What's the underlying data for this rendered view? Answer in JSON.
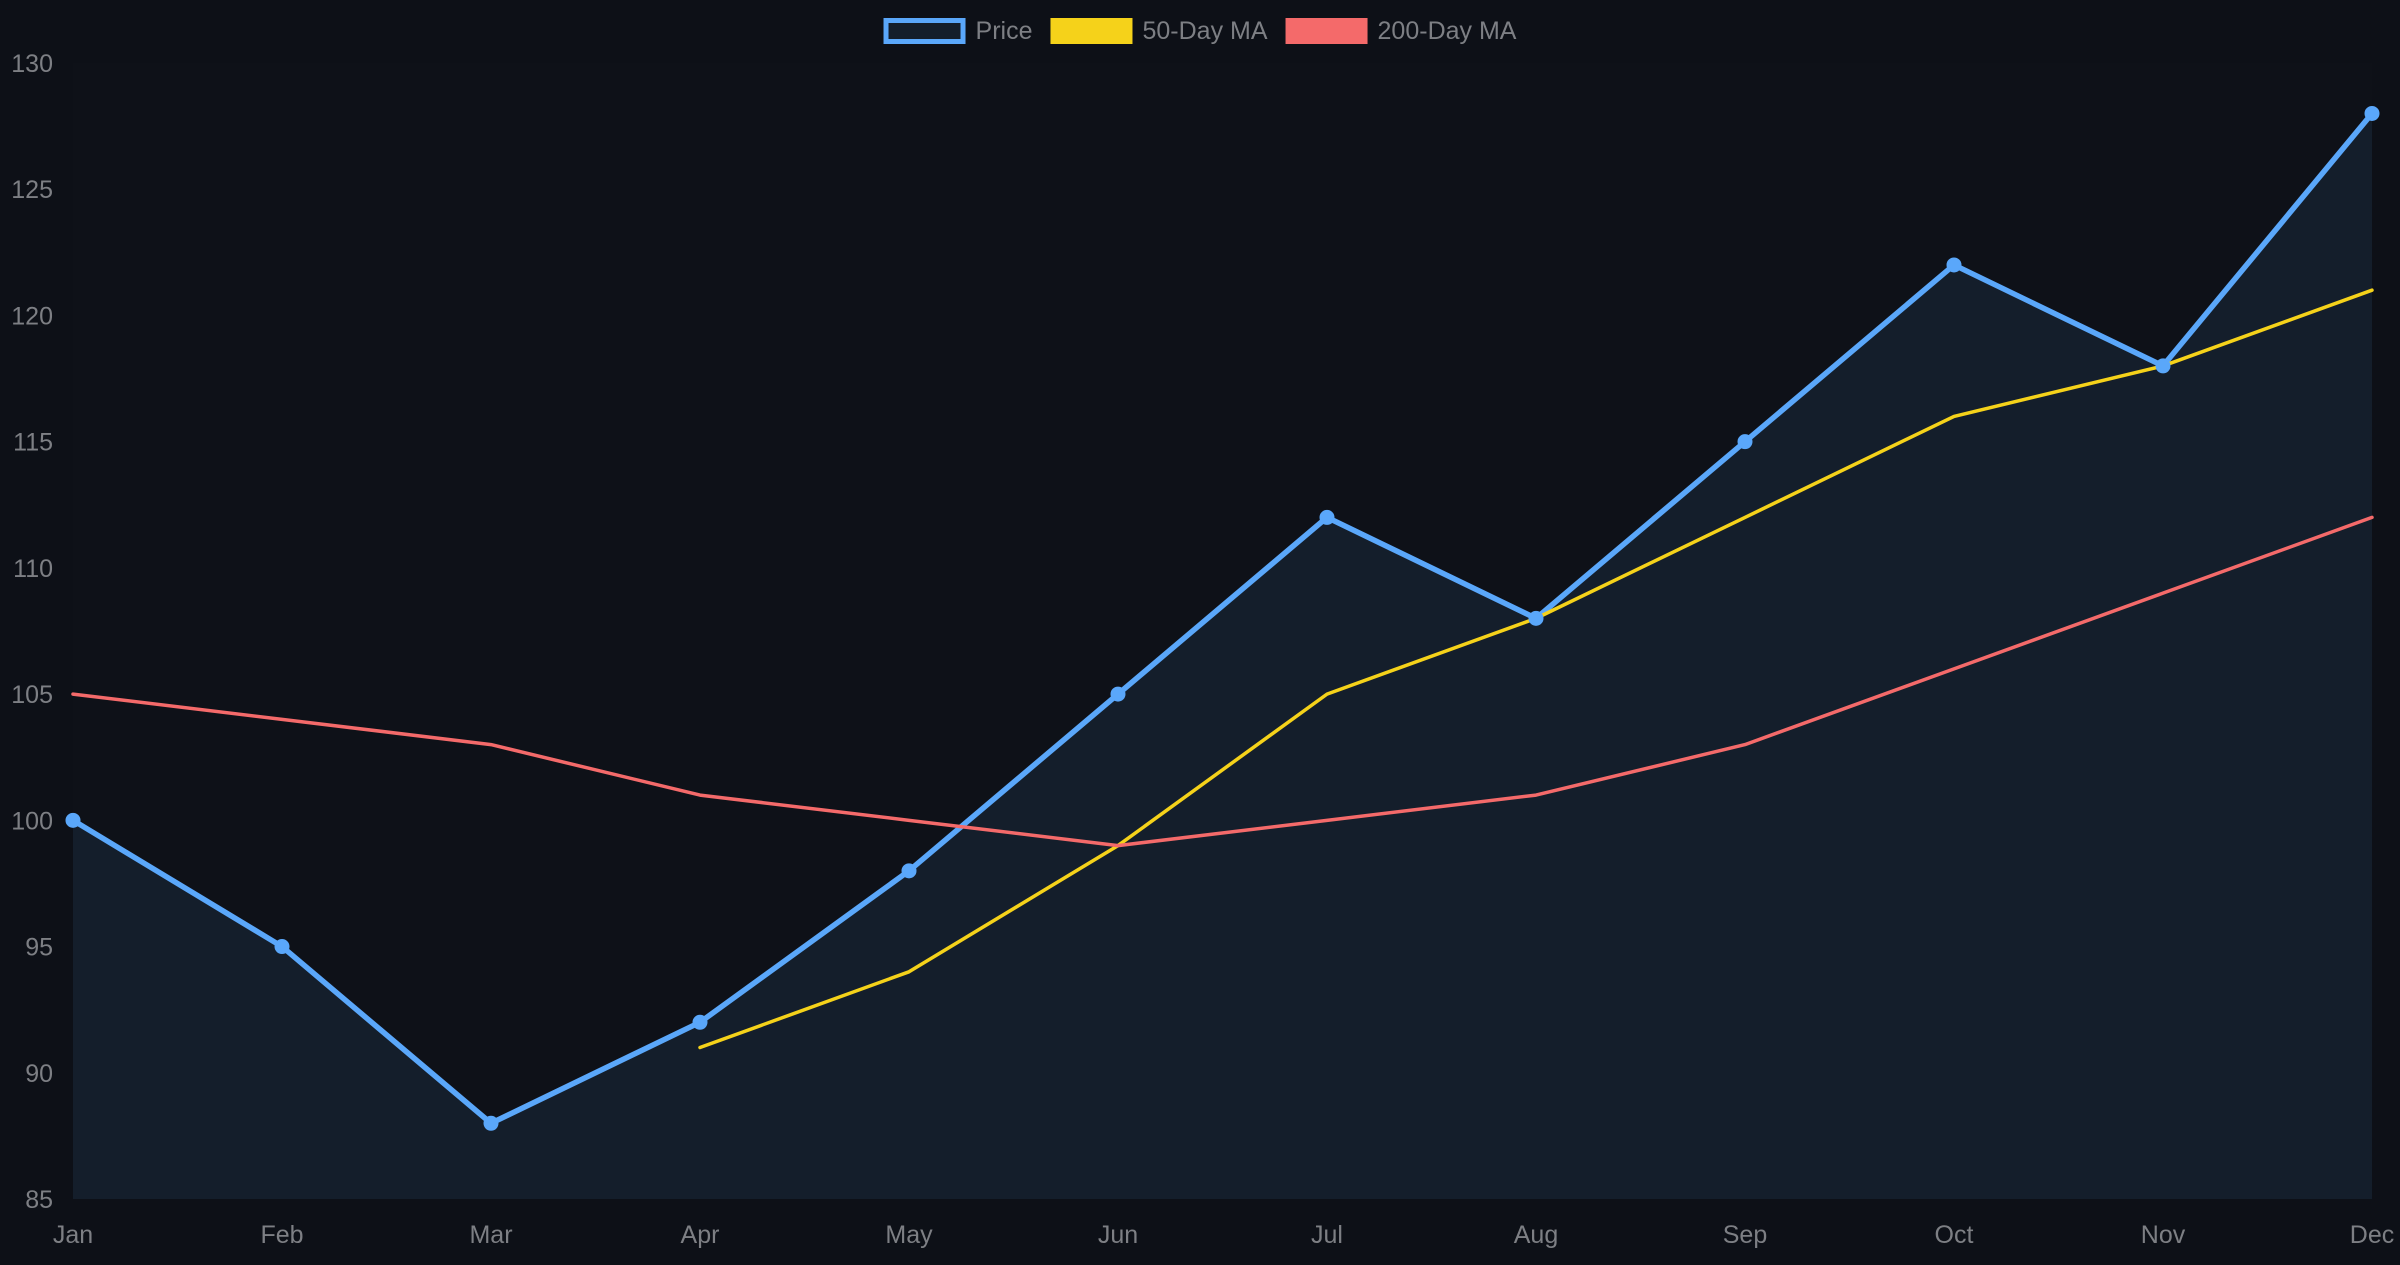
{
  "chart_data": {
    "type": "line",
    "categories": [
      "Jan",
      "Feb",
      "Mar",
      "Apr",
      "May",
      "Jun",
      "Jul",
      "Aug",
      "Sep",
      "Oct",
      "Nov",
      "Dec"
    ],
    "ylim": [
      85,
      130
    ],
    "yticks": [
      85,
      90,
      95,
      100,
      105,
      110,
      115,
      120,
      125,
      130
    ],
    "legend_position": "top-center",
    "grid": false,
    "series": [
      {
        "name": "Price",
        "color": "#5aa7fa",
        "fill": "#141e2b",
        "markers": true,
        "values": [
          100,
          95,
          88,
          92,
          98,
          105,
          112,
          108,
          115,
          122,
          118,
          128
        ]
      },
      {
        "name": "50-Day MA",
        "color": "#f5d21a",
        "markers": false,
        "values": [
          null,
          null,
          null,
          91,
          94,
          99,
          105,
          108,
          112,
          116,
          118,
          121
        ]
      },
      {
        "name": "200-Day MA",
        "color": "#f46a6a",
        "markers": false,
        "values": [
          105,
          104,
          103,
          101,
          100,
          99,
          100,
          101,
          103,
          106,
          109,
          112
        ]
      }
    ],
    "colors": {
      "background": "#0d1017",
      "plot_background": "#0e1118",
      "axis_text": "#7d7f84"
    }
  }
}
